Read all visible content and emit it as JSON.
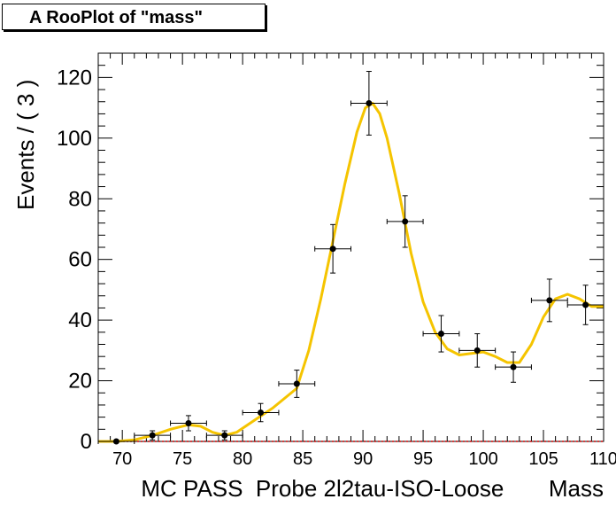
{
  "chart_data": {
    "type": "scatter",
    "title": "A RooPlot of \"mass\"",
    "xlabel": "MC PASS  Probe 2l2tau-ISO-Loose       Mass",
    "ylabel": "Events / ( 3 )",
    "xlim": [
      68,
      110
    ],
    "ylim": [
      0,
      128
    ],
    "x_ticks": [
      70,
      75,
      80,
      85,
      90,
      95,
      100,
      105,
      110
    ],
    "x_tick_labels": [
      "70",
      "75",
      "80",
      "85",
      "90",
      "95",
      "100",
      "105",
      "110"
    ],
    "y_ticks": [
      0,
      20,
      40,
      60,
      80,
      100,
      120
    ],
    "y_tick_labels": [
      "0",
      "20",
      "40",
      "60",
      "80",
      "100",
      "120"
    ],
    "series": [
      {
        "kind": "points",
        "color": "#000000",
        "x": [
          69.5,
          72.5,
          75.5,
          78.5,
          81.5,
          84.5,
          87.5,
          90.5,
          93.5,
          96.5,
          99.5,
          102.5,
          105.5,
          108.5
        ],
        "y": [
          0,
          2,
          6,
          2,
          9.5,
          19,
          63.5,
          111.5,
          72.5,
          35.5,
          30,
          24.5,
          46.5,
          45
        ],
        "yerr": [
          0,
          1.5,
          2.5,
          1.5,
          3,
          4.5,
          8,
          10.5,
          8.5,
          6,
          5.5,
          5,
          7,
          6.5
        ],
        "xerr": 1.5
      },
      {
        "kind": "curve",
        "color": "#f5c400",
        "x": [
          68,
          69.5,
          71,
          72.5,
          74,
          75.5,
          76.5,
          77.5,
          78.5,
          79.5,
          81,
          82.5,
          84.5,
          85.5,
          86.5,
          87.5,
          88.5,
          89.5,
          90.2,
          90.8,
          91.4,
          92,
          93,
          94,
          95,
          96,
          97,
          98,
          99,
          100,
          101,
          102,
          103,
          104,
          105,
          106,
          107,
          108,
          109,
          110
        ],
        "y": [
          0,
          0,
          0.5,
          2,
          4,
          5.5,
          5,
          3,
          2,
          3,
          7,
          11,
          17.5,
          30,
          47,
          66,
          85,
          102,
          110,
          111.5,
          108,
          100,
          82,
          62,
          46,
          36,
          30.5,
          28.5,
          29,
          29.5,
          28,
          26,
          26,
          32,
          41,
          47,
          48.5,
          47,
          44.5,
          44.5
        ]
      },
      {
        "kind": "baseline",
        "color": "#cc0000",
        "x": [
          68,
          110
        ],
        "y": [
          0,
          0
        ]
      }
    ]
  }
}
